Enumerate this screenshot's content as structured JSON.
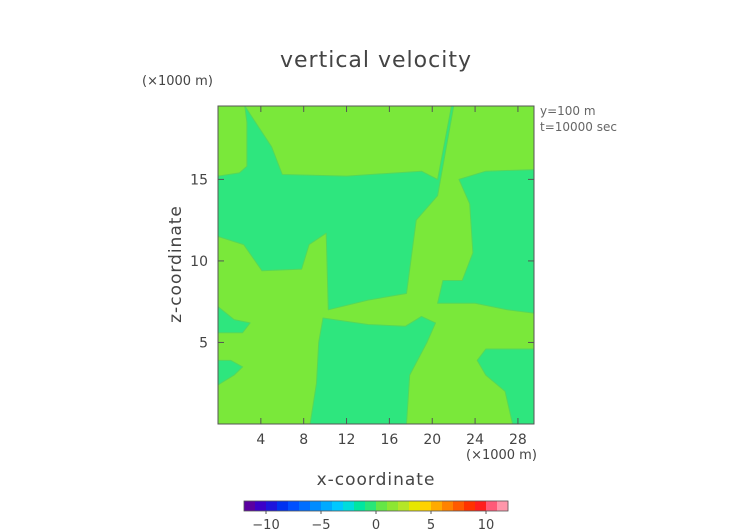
{
  "chart_data": {
    "type": "heatmap",
    "title": "vertical velocity",
    "xlabel": "x-coordinate",
    "ylabel": "z-coordinate",
    "x_unit": "(×1000 m)",
    "y_unit": "(×1000 m)",
    "annotations": [
      "y=100 m",
      "t=10000 sec"
    ],
    "xlim": [
      0,
      29.5
    ],
    "ylim": [
      0,
      19.5
    ],
    "x_ticks": [
      4,
      8,
      12,
      16,
      20,
      24,
      28
    ],
    "y_ticks": [
      5,
      10,
      15
    ],
    "background_level_color": "#7ae83a",
    "regions": [
      {
        "level": "slightly negative",
        "color": "#2ee67e",
        "outline": [
          [
            2.5,
            19.5
          ],
          [
            5,
            17
          ],
          [
            6,
            15.3
          ],
          [
            12,
            15.2
          ],
          [
            19,
            15.5
          ],
          [
            20.5,
            15
          ],
          [
            21.8,
            19.5
          ],
          [
            22,
            19.5
          ],
          [
            20.5,
            14
          ],
          [
            18.5,
            12.5
          ],
          [
            17.6,
            8
          ],
          [
            14,
            7.6
          ],
          [
            10.3,
            7
          ],
          [
            10.1,
            11.7
          ],
          [
            8.5,
            11
          ],
          [
            7.8,
            9.5
          ],
          [
            4.1,
            9.4
          ],
          [
            2.4,
            11
          ],
          [
            0,
            11.5
          ],
          [
            0,
            15.2
          ],
          [
            2,
            15.4
          ],
          [
            2.7,
            15.8
          ],
          [
            2.7,
            18.5
          ]
        ]
      },
      {
        "level": "slightly negative",
        "color": "#2ee67e",
        "outline": [
          [
            22.5,
            15
          ],
          [
            25,
            15.5
          ],
          [
            29.5,
            15.6
          ],
          [
            29.5,
            6.8
          ],
          [
            27,
            7
          ],
          [
            24,
            7.4
          ],
          [
            20.5,
            7.4
          ],
          [
            21,
            8.8
          ],
          [
            22.8,
            8.8
          ],
          [
            23.8,
            10.5
          ],
          [
            23.5,
            13.5
          ]
        ]
      },
      {
        "level": "slightly negative",
        "color": "#2ee67e",
        "outline": [
          [
            8.6,
            0
          ],
          [
            9.2,
            2.5
          ],
          [
            9.4,
            5
          ],
          [
            9.8,
            6.5
          ],
          [
            14,
            6.1
          ],
          [
            17.5,
            6.0
          ],
          [
            19,
            6.6
          ],
          [
            20.3,
            6.2
          ],
          [
            19.5,
            5
          ],
          [
            17.9,
            3
          ],
          [
            17.6,
            0
          ]
        ]
      },
      {
        "level": "slightly negative",
        "color": "#2ee67e",
        "outline": [
          [
            27.5,
            0
          ],
          [
            26.8,
            2
          ],
          [
            25,
            3
          ],
          [
            24.2,
            3.9
          ],
          [
            25,
            4.6
          ],
          [
            29.5,
            4.6
          ],
          [
            29.5,
            0
          ]
        ]
      },
      {
        "level": "slightly negative",
        "color": "#2ee67e",
        "outline": [
          [
            0,
            7.2
          ],
          [
            1.5,
            6.4
          ],
          [
            3,
            6.2
          ],
          [
            2.3,
            5.6
          ],
          [
            0,
            5.6
          ]
        ]
      },
      {
        "level": "slightly negative",
        "color": "#2ee67e",
        "outline": [
          [
            0,
            2.4
          ],
          [
            1.5,
            3
          ],
          [
            2.3,
            3.5
          ],
          [
            1.2,
            3.9
          ],
          [
            0,
            3.9
          ]
        ]
      }
    ],
    "colorbar": {
      "ticks": [
        -10,
        -5,
        0,
        5,
        10
      ],
      "range": [
        -12,
        12
      ],
      "colors": [
        "#5a00a0",
        "#3c00c8",
        "#1e14dc",
        "#0032f0",
        "#0050ff",
        "#006eff",
        "#008cff",
        "#00aaff",
        "#00c8ff",
        "#00dcdc",
        "#00e6a0",
        "#28e678",
        "#64e646",
        "#8ce632",
        "#b4e628",
        "#e6e600",
        "#ffd200",
        "#ffaa00",
        "#ff8200",
        "#ff5a00",
        "#ff3200",
        "#ff1e1e",
        "#ff5a78",
        "#ff96aa"
      ]
    }
  }
}
